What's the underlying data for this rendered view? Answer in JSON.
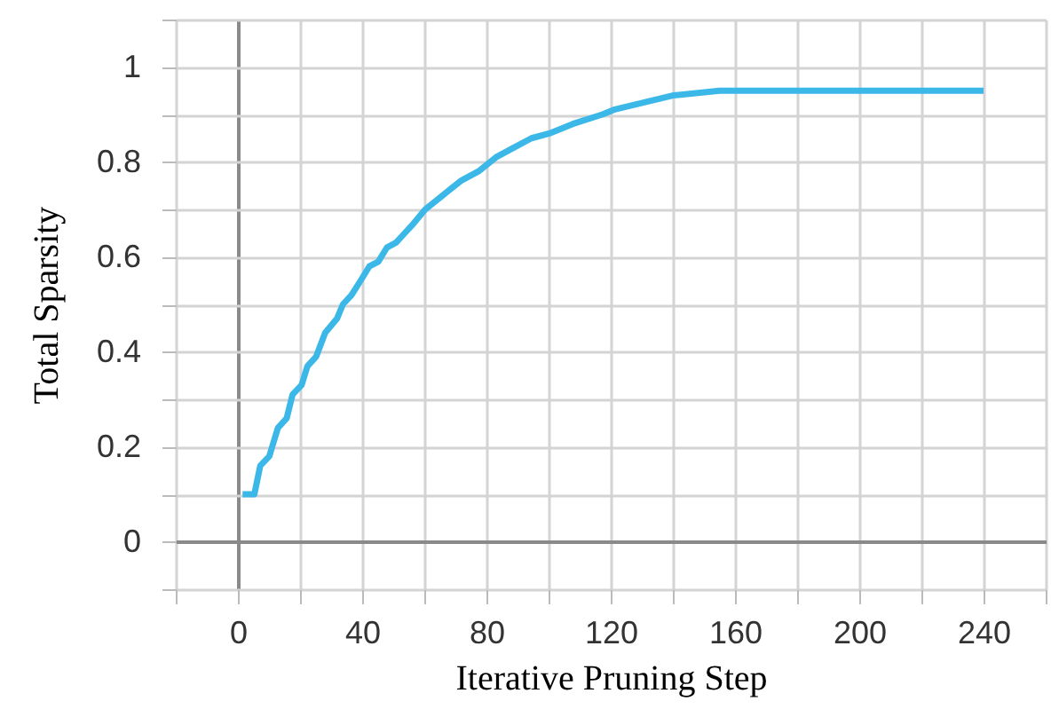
{
  "chart_data": {
    "type": "line",
    "xlabel": "Iterative Pruning Step",
    "ylabel": "Total Sparsity",
    "x": [
      1.5,
      5.3,
      7.2,
      10.1,
      12.9,
      15.7,
      17.6,
      20.5,
      22.4,
      25.2,
      28.1,
      31.9,
      33.8,
      36.6,
      39.5,
      42.3,
      45.2,
      48,
      50.9,
      53.7,
      56.5,
      60.3,
      66,
      71.7,
      77.4,
      83.1,
      88.8,
      94.5,
      100.2,
      107.8,
      117.3,
      121,
      140,
      155,
      240
    ],
    "series": [
      {
        "color": "#3bb8e8",
        "values": [
          0.1,
          0.1,
          0.16,
          0.18,
          0.24,
          0.26,
          0.31,
          0.33,
          0.37,
          0.39,
          0.44,
          0.47,
          0.5,
          0.52,
          0.55,
          0.58,
          0.59,
          0.62,
          0.63,
          0.65,
          0.67,
          0.7,
          0.73,
          0.76,
          0.78,
          0.81,
          0.83,
          0.85,
          0.86,
          0.88,
          0.9,
          0.91,
          0.94,
          0.95,
          0.95
        ]
      }
    ],
    "xlim": [
      -20,
      260
    ],
    "ylim": [
      -0.1,
      1.1
    ],
    "xticks": [
      {
        "value": -20,
        "label": null
      },
      0,
      {
        "value": 20,
        "label": null
      },
      40,
      {
        "value": 60,
        "label": null
      },
      80,
      {
        "value": 100,
        "label": null
      },
      120,
      {
        "value": 140,
        "label": null
      },
      160,
      {
        "value": 180,
        "label": null
      },
      200,
      {
        "value": 220,
        "label": null
      },
      240,
      {
        "value": 260,
        "label": null
      }
    ],
    "yticks": [
      {
        "value": -0.1,
        "label": null
      },
      0,
      {
        "value": 0.1,
        "label": null
      },
      0.2,
      {
        "value": 0.3,
        "label": null
      },
      0.4,
      {
        "value": 0.5,
        "label": null
      },
      0.6,
      {
        "value": 0.7,
        "label": null
      },
      0.8,
      {
        "value": 0.9,
        "label": null
      },
      1,
      {
        "value": 1.1,
        "label": null
      }
    ],
    "grid": true
  }
}
